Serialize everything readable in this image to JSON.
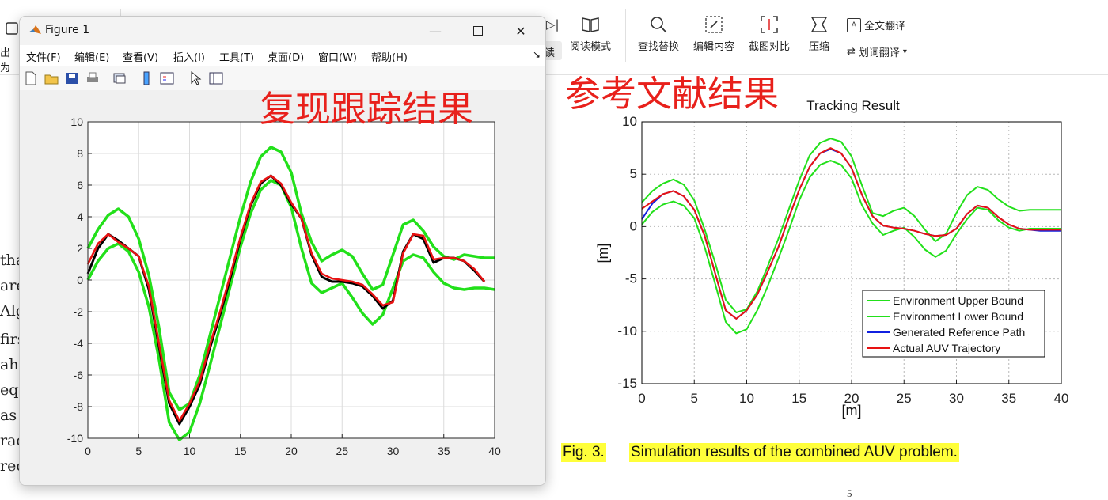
{
  "ribbon": {
    "left_items": [
      "出为"
    ],
    "read_label": "读",
    "items": [
      {
        "label": "阅读模式",
        "icon": "book-icon"
      },
      {
        "label": "查找替换",
        "icon": "search-icon"
      },
      {
        "label": "编辑内容",
        "icon": "edit-icon"
      },
      {
        "label": "截图对比",
        "icon": "screenshot-compare-icon"
      },
      {
        "label": "压缩",
        "icon": "compress-icon"
      }
    ],
    "full_translate": "全文翻译",
    "word_translate": "划词翻译"
  },
  "doc_fragments": [
    "tha",
    "are",
    "Alg",
    "firs",
    "ahe",
    "equ",
    "as",
    "rac",
    "rec"
  ],
  "figure_window": {
    "title": "Figure 1",
    "menu": [
      "文件(F)",
      "编辑(E)",
      "查看(V)",
      "插入(I)",
      "工具(T)",
      "桌面(D)",
      "窗口(W)",
      "帮助(H)"
    ]
  },
  "overlay": {
    "left_label": "复现跟踪结果",
    "right_label": "参考文献结果"
  },
  "caption": {
    "fig_label": "Fig. 3.",
    "text": "Simulation results of the combined AUV problem."
  },
  "page_number": "5",
  "colors": {
    "green": "#22e01a",
    "red": "#e81212",
    "blue": "#1020e0",
    "black": "#000000",
    "overlay_red": "#e8201b",
    "caption_highlight": "#ffff3a"
  },
  "chart_data": [
    {
      "type": "line",
      "title": "",
      "xlabel": "",
      "ylabel": "",
      "xlim": [
        0,
        40
      ],
      "ylim": [
        -10,
        10
      ],
      "xticks": [
        0,
        5,
        10,
        15,
        20,
        25,
        30,
        35,
        40
      ],
      "yticks": [
        -10,
        -8,
        -6,
        -4,
        -2,
        0,
        2,
        4,
        6,
        8,
        10
      ],
      "grid": true,
      "series": [
        {
          "color": "green",
          "x": [
            0,
            1,
            2,
            3,
            4,
            5,
            6,
            7,
            8,
            9,
            10,
            11,
            12,
            13,
            14,
            15,
            16,
            17,
            18,
            19,
            20,
            21,
            22,
            23,
            24,
            25,
            26,
            27,
            28,
            29,
            30,
            31,
            32,
            33,
            34,
            35,
            36,
            37,
            38,
            39,
            40
          ],
          "y": [
            2.0,
            3.2,
            4.1,
            4.5,
            4.0,
            2.6,
            0.3,
            -3.0,
            -7.1,
            -8.2,
            -7.8,
            -6.0,
            -3.5,
            -1.0,
            1.5,
            4.0,
            6.2,
            7.8,
            8.4,
            8.1,
            6.8,
            4.2,
            2.4,
            1.2,
            1.6,
            1.9,
            1.5,
            0.4,
            -0.6,
            -0.3,
            1.6,
            3.5,
            3.8,
            3.1,
            2.1,
            1.5,
            1.3,
            1.6,
            1.5,
            1.4,
            1.4
          ]
        },
        {
          "color": "green",
          "x": [
            0,
            1,
            2,
            3,
            4,
            5,
            6,
            7,
            8,
            9,
            10,
            11,
            12,
            13,
            14,
            15,
            16,
            17,
            18,
            19,
            20,
            21,
            22,
            23,
            24,
            25,
            26,
            27,
            28,
            29,
            30,
            31,
            32,
            33,
            34,
            35,
            36,
            37,
            38,
            39,
            40
          ],
          "y": [
            0.0,
            1.2,
            2.0,
            2.3,
            1.8,
            0.5,
            -1.7,
            -5.0,
            -9.0,
            -10.1,
            -9.6,
            -7.8,
            -5.4,
            -2.9,
            -0.4,
            2.1,
            4.2,
            5.7,
            6.3,
            6.0,
            4.6,
            2.0,
            -0.2,
            -0.8,
            -0.5,
            -0.2,
            -1.1,
            -2.1,
            -2.8,
            -2.2,
            -0.5,
            1.2,
            1.6,
            1.4,
            0.5,
            -0.2,
            -0.5,
            -0.6,
            -0.5,
            -0.5,
            -0.6
          ]
        },
        {
          "color": "black",
          "x": [
            0,
            1,
            2,
            3,
            4,
            5,
            6,
            7,
            8,
            9,
            10,
            11,
            12,
            13,
            14,
            15,
            16,
            17,
            18,
            19,
            20,
            21,
            22,
            23,
            24,
            25,
            26,
            27,
            28,
            29,
            30,
            31,
            32,
            33,
            34,
            35,
            36,
            37,
            38,
            39
          ],
          "y": [
            0.4,
            2.0,
            2.9,
            2.5,
            2.0,
            1.5,
            -0.6,
            -4.2,
            -7.8,
            -9.1,
            -8.0,
            -6.6,
            -4.3,
            -2.2,
            0.1,
            2.6,
            4.7,
            6.1,
            6.6,
            6.0,
            4.8,
            3.9,
            1.6,
            0.2,
            -0.1,
            -0.1,
            -0.2,
            -0.4,
            -1.0,
            -1.8,
            -1.3,
            1.8,
            2.9,
            2.6,
            1.1,
            1.4,
            1.4,
            1.2,
            0.6,
            -0.1
          ]
        },
        {
          "color": "red",
          "x": [
            0,
            1,
            2,
            3,
            4,
            5,
            6,
            7,
            8,
            9,
            10,
            11,
            12,
            13,
            14,
            15,
            16,
            17,
            18,
            19,
            20,
            21,
            22,
            23,
            24,
            25,
            26,
            27,
            28,
            29,
            30,
            31,
            32,
            33,
            34,
            35,
            36,
            37,
            38,
            39
          ],
          "y": [
            1.0,
            2.3,
            2.9,
            2.4,
            2.0,
            1.5,
            -0.4,
            -4.0,
            -7.6,
            -8.9,
            -7.8,
            -6.4,
            -4.1,
            -2.0,
            0.3,
            2.7,
            4.8,
            6.2,
            6.6,
            6.1,
            4.9,
            3.9,
            1.7,
            0.4,
            0.1,
            0.0,
            -0.1,
            -0.3,
            -0.9,
            -1.6,
            -1.4,
            1.7,
            2.9,
            2.8,
            1.3,
            1.4,
            1.4,
            1.2,
            0.7,
            -0.1
          ]
        }
      ]
    },
    {
      "type": "line",
      "title": "Tracking Result",
      "xlabel": "[m]",
      "ylabel": "[m]",
      "xlim": [
        0,
        40
      ],
      "ylim": [
        -15,
        10
      ],
      "xticks": [
        0,
        5,
        10,
        15,
        20,
        25,
        30,
        35,
        40
      ],
      "yticks": [
        -15,
        -10,
        -5,
        0,
        5,
        10
      ],
      "grid": true,
      "legend_position": "bottom-right",
      "series": [
        {
          "name": "Environment Upper Bound",
          "color": "green",
          "x": [
            0,
            1,
            2,
            3,
            4,
            5,
            6,
            7,
            8,
            9,
            10,
            11,
            12,
            13,
            14,
            15,
            16,
            17,
            18,
            19,
            20,
            21,
            22,
            23,
            24,
            25,
            26,
            27,
            28,
            29,
            30,
            31,
            32,
            33,
            34,
            35,
            36,
            37,
            38,
            39,
            40
          ],
          "y": [
            2.3,
            3.4,
            4.1,
            4.5,
            4.0,
            2.5,
            -0.3,
            -3.5,
            -7.0,
            -8.2,
            -7.9,
            -6.2,
            -3.8,
            -1.2,
            1.6,
            4.4,
            6.8,
            8.0,
            8.4,
            8.1,
            6.7,
            3.9,
            1.3,
            1.0,
            1.5,
            1.8,
            1.0,
            -0.3,
            -1.4,
            -0.7,
            1.3,
            3.0,
            3.8,
            3.5,
            2.6,
            1.9,
            1.5,
            1.6,
            1.6,
            1.6,
            1.6
          ]
        },
        {
          "name": "Environment Lower Bound",
          "color": "green",
          "x": [
            0,
            1,
            2,
            3,
            4,
            5,
            6,
            7,
            8,
            9,
            10,
            11,
            12,
            13,
            14,
            15,
            16,
            17,
            18,
            19,
            20,
            21,
            22,
            23,
            24,
            25,
            26,
            27,
            28,
            29,
            30,
            31,
            32,
            33,
            34,
            35,
            36,
            37,
            38,
            39,
            40
          ],
          "y": [
            0.2,
            1.4,
            2.1,
            2.4,
            2.0,
            0.8,
            -2.0,
            -5.5,
            -9.1,
            -10.2,
            -9.8,
            -8.0,
            -5.7,
            -3.1,
            -0.4,
            2.5,
            4.7,
            5.9,
            6.3,
            5.9,
            4.6,
            2.0,
            0.3,
            -0.8,
            -0.4,
            -0.1,
            -1.0,
            -2.2,
            -2.9,
            -2.3,
            -0.7,
            0.7,
            1.8,
            1.6,
            0.6,
            -0.1,
            -0.4,
            -0.2,
            -0.2,
            -0.2,
            -0.2
          ]
        },
        {
          "name": "Generated Reference Path",
          "color": "blue",
          "x": [
            0,
            1,
            2,
            3,
            4,
            5,
            6,
            7,
            8,
            9,
            10,
            11,
            12,
            13,
            14,
            15,
            16,
            17,
            18,
            19,
            20,
            21,
            22,
            23,
            24,
            25,
            26,
            27,
            28,
            29,
            30,
            31,
            32,
            33,
            34,
            35,
            36,
            37,
            38,
            39,
            40
          ],
          "y": [
            0.7,
            2.2,
            3.1,
            3.4,
            2.9,
            1.6,
            -0.9,
            -4.5,
            -8.0,
            -8.8,
            -8.0,
            -6.5,
            -4.3,
            -2.0,
            0.8,
            3.5,
            5.7,
            7.0,
            7.4,
            7.0,
            5.6,
            3.0,
            1.0,
            0.1,
            -0.1,
            -0.2,
            -0.4,
            -0.7,
            -0.9,
            -0.8,
            -0.2,
            1.2,
            2.0,
            1.8,
            0.9,
            0.2,
            -0.2,
            -0.3,
            -0.4,
            -0.4,
            -0.4
          ]
        },
        {
          "name": "Actual AUV Trajectory",
          "color": "red",
          "x": [
            0,
            1,
            2,
            3,
            4,
            5,
            6,
            7,
            8,
            9,
            10,
            11,
            12,
            13,
            14,
            15,
            16,
            17,
            18,
            19,
            20,
            21,
            22,
            23,
            24,
            25,
            26,
            27,
            28,
            29,
            30,
            31,
            32,
            33,
            34,
            35,
            36,
            37,
            38,
            39,
            40
          ],
          "y": [
            1.7,
            2.4,
            3.1,
            3.4,
            2.9,
            1.6,
            -0.9,
            -4.5,
            -8.0,
            -8.8,
            -8.0,
            -6.5,
            -4.3,
            -2.0,
            0.8,
            3.5,
            5.7,
            7.0,
            7.5,
            7.0,
            5.6,
            3.0,
            1.0,
            0.1,
            -0.1,
            -0.2,
            -0.4,
            -0.7,
            -0.9,
            -0.8,
            -0.2,
            1.2,
            2.0,
            1.8,
            0.9,
            0.2,
            -0.2,
            -0.3,
            -0.3,
            -0.3,
            -0.3
          ]
        }
      ]
    }
  ]
}
